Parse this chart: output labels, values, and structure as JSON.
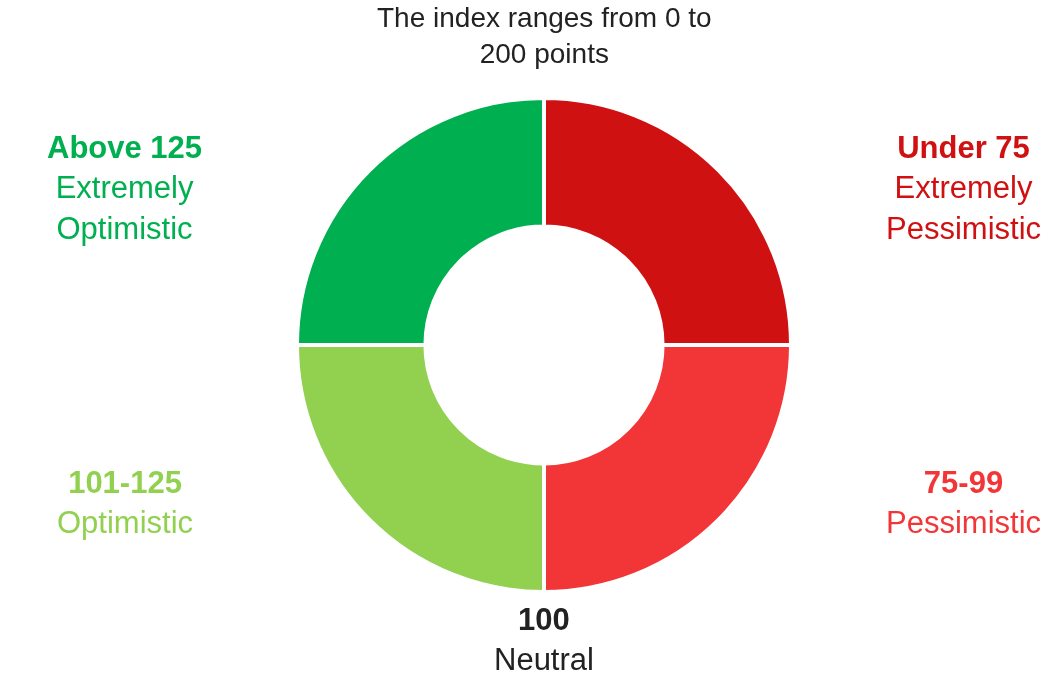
{
  "chart_data": {
    "type": "donut",
    "title": "The index ranges from 0 to 200 points",
    "categories": [
      "Under 75\nExtremely Pessimistic",
      "75-99\nPessimistic",
      "101-125\nOptimistic",
      "Above 125\nExtremely Optimistic"
    ],
    "values": [
      25,
      25,
      25,
      25
    ],
    "colors": [
      "#cf1112",
      "#f23537",
      "#92d050",
      "#00b050"
    ],
    "annotations": [
      "100\nNeutral"
    ],
    "legend": false
  }
}
